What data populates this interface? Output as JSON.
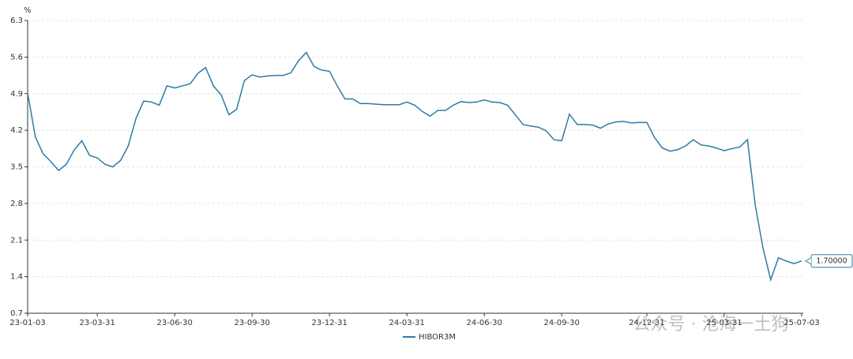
{
  "chart_data": {
    "type": "line",
    "y_unit": "%",
    "categories": [
      "23-01-03",
      null,
      null,
      null,
      null,
      null,
      null,
      null,
      null,
      "23-03-31",
      null,
      null,
      null,
      null,
      null,
      null,
      null,
      null,
      null,
      "23-06-30",
      null,
      null,
      null,
      null,
      null,
      null,
      null,
      null,
      null,
      "23-09-30",
      null,
      null,
      null,
      null,
      null,
      null,
      null,
      null,
      null,
      "23-12-31",
      null,
      null,
      null,
      null,
      null,
      null,
      null,
      null,
      null,
      "24-03-31",
      null,
      null,
      null,
      null,
      null,
      null,
      null,
      null,
      null,
      "24-06-30",
      null,
      null,
      null,
      null,
      null,
      null,
      null,
      null,
      null,
      "24-09-30",
      null,
      null,
      null,
      null,
      null,
      null,
      null,
      null,
      null,
      null,
      "24-12-31",
      null,
      null,
      null,
      null,
      null,
      null,
      null,
      null,
      null,
      "25-03-31",
      null,
      null,
      null,
      null,
      null,
      null,
      null,
      null,
      null,
      "25-07-03"
    ],
    "series": [
      {
        "name": "HIBOR3M",
        "color": "#2d7ba6",
        "values": [
          4.91,
          4.07,
          3.75,
          3.6,
          3.43,
          3.55,
          3.82,
          4.0,
          3.72,
          3.67,
          3.55,
          3.5,
          3.62,
          3.9,
          4.43,
          4.76,
          4.74,
          4.68,
          5.05,
          5.01,
          5.05,
          5.09,
          5.29,
          5.4,
          5.05,
          4.88,
          4.5,
          4.6,
          5.15,
          5.26,
          5.22,
          5.24,
          5.25,
          5.25,
          5.3,
          5.53,
          5.69,
          5.42,
          5.35,
          5.33,
          5.05,
          4.8,
          4.8,
          4.71,
          4.71,
          4.7,
          4.69,
          4.69,
          4.69,
          4.74,
          4.68,
          4.56,
          4.47,
          4.58,
          4.58,
          4.68,
          4.75,
          4.73,
          4.74,
          4.78,
          4.74,
          4.73,
          4.68,
          4.5,
          4.31,
          4.28,
          4.26,
          4.19,
          4.02,
          4.0,
          4.51,
          4.31,
          4.31,
          4.3,
          4.24,
          4.32,
          4.36,
          4.37,
          4.34,
          4.35,
          4.35,
          4.06,
          3.86,
          3.8,
          3.83,
          3.9,
          4.02,
          3.92,
          3.9,
          3.86,
          3.81,
          3.85,
          3.88,
          4.02,
          2.77,
          1.95,
          1.34,
          1.76,
          1.7,
          1.65,
          1.7
        ],
        "value_labels": [
          null,
          null,
          null,
          null,
          null,
          null,
          null,
          null,
          null,
          null,
          null,
          null,
          null,
          null,
          null,
          null,
          null,
          null,
          null,
          null,
          null,
          null,
          null,
          null,
          null,
          null,
          null,
          null,
          null,
          null,
          null,
          null,
          null,
          null,
          null,
          null,
          null,
          null,
          null,
          null,
          null,
          null,
          null,
          null,
          null,
          null,
          null,
          null,
          null,
          null,
          null,
          null,
          null,
          null,
          null,
          null,
          null,
          null,
          null,
          null,
          null,
          null,
          null,
          null,
          null,
          null,
          null,
          null,
          null,
          null,
          null,
          null,
          null,
          null,
          null,
          null,
          null,
          null,
          null,
          null,
          null,
          null,
          null,
          null,
          null,
          null,
          null,
          null,
          null,
          null,
          null,
          null,
          null,
          null,
          null,
          null,
          null,
          null,
          null,
          null,
          "1.70000"
        ]
      }
    ],
    "ylim": [
      0.7,
      6.3
    ],
    "yticks": [
      0.7,
      1.4,
      2.1,
      2.8,
      3.5,
      4.2,
      4.9,
      5.6,
      6.3
    ],
    "grid": true,
    "watermark": "公众号 · 沧海一土狗"
  }
}
